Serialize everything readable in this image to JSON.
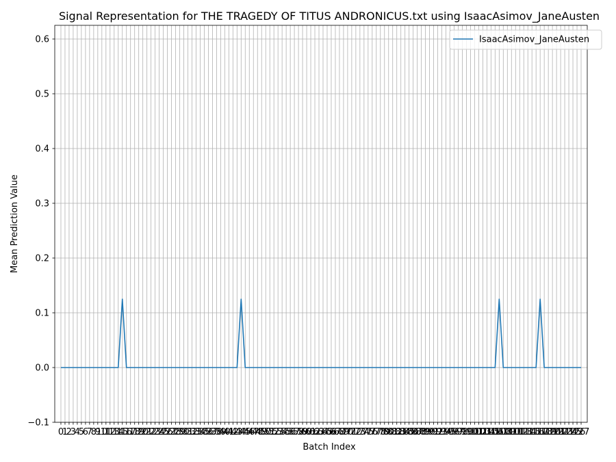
{
  "chart_data": {
    "type": "line",
    "title": "Signal Representation for THE TRAGEDY OF TITUS ANDRONICUS.txt using IsaacAsimov_JaneAusten",
    "xlabel": "Batch Index",
    "ylabel": "Mean Prediction Value",
    "xlim": [
      -1.5,
      128.5
    ],
    "ylim": [
      -0.1,
      0.625
    ],
    "yticks": [
      -0.1,
      0.0,
      0.1,
      0.2,
      0.3,
      0.4,
      0.5,
      0.6
    ],
    "ytick_labels": [
      "−0.1",
      "0.0",
      "0.1",
      "0.2",
      "0.3",
      "0.4",
      "0.5",
      "0.6"
    ],
    "x_tick_count": 128,
    "grid": true,
    "legend_position": "top-right",
    "series": [
      {
        "name": "IsaacAsimov_JaneAusten",
        "color": "#1f77b4",
        "baseline": 0.0,
        "peaks": [
          {
            "x": 15,
            "y": 0.125
          },
          {
            "x": 44,
            "y": 0.125
          },
          {
            "x": 107,
            "y": 0.125
          },
          {
            "x": 117,
            "y": 0.125
          }
        ]
      }
    ]
  }
}
